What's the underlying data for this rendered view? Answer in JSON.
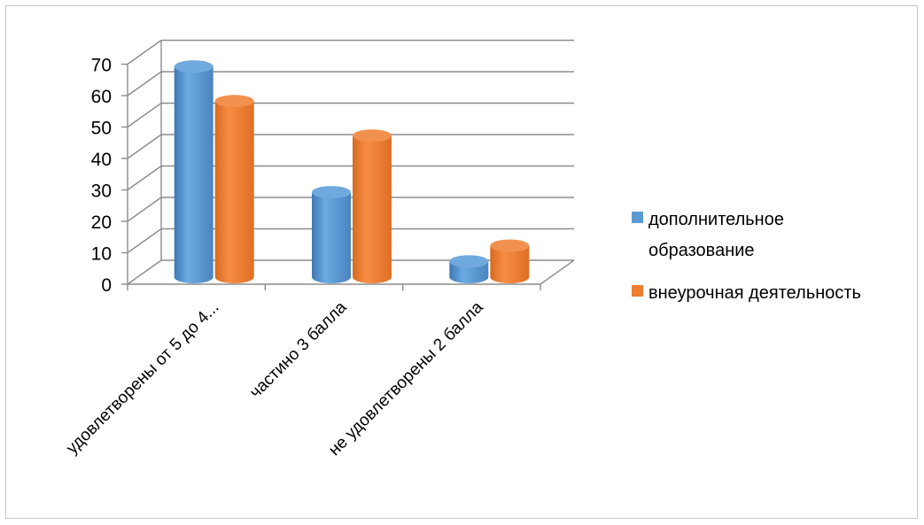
{
  "chart_data": {
    "type": "bar",
    "categories": [
      "удовлетворены от 5 до 4...",
      "частино 3 балла",
      "не удовлетворены 2 балла"
    ],
    "series": [
      {
        "name": "дополнительное образование",
        "values": [
          67,
          27,
          5
        ],
        "color": "#5B9BD5"
      },
      {
        "name": "внеурочная деятельность",
        "values": [
          56,
          45,
          10
        ],
        "color": "#ED7D31"
      }
    ],
    "yticks": [
      "0",
      "10",
      "20",
      "30",
      "40",
      "50",
      "60",
      "70"
    ],
    "ylim": [
      0,
      70
    ],
    "legend_position": "right",
    "grid": true
  },
  "legend": {
    "item1_line1": "дополнительное",
    "item1_line2": "образование",
    "item2": "внеурочная деятельность"
  }
}
